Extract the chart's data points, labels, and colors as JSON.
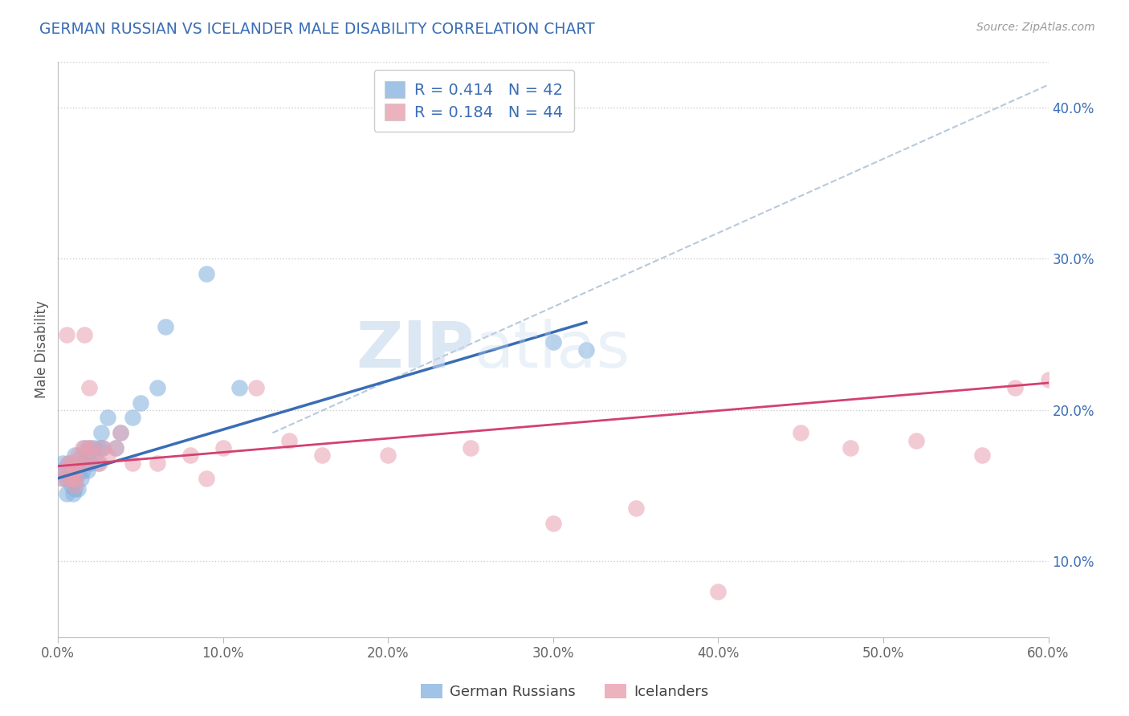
{
  "title": "GERMAN RUSSIAN VS ICELANDER MALE DISABILITY CORRELATION CHART",
  "source": "Source: ZipAtlas.com",
  "ylabel": "Male Disability",
  "xlim": [
    0.0,
    0.6
  ],
  "ylim": [
    0.05,
    0.43
  ],
  "xticks": [
    0.0,
    0.1,
    0.2,
    0.3,
    0.4,
    0.5,
    0.6
  ],
  "xticklabels": [
    "0.0%",
    "10.0%",
    "20.0%",
    "30.0%",
    "40.0%",
    "50.0%",
    "60.0%"
  ],
  "yticks": [
    0.1,
    0.2,
    0.3,
    0.4
  ],
  "yticklabels": [
    "10.0%",
    "20.0%",
    "30.0%",
    "40.0%"
  ],
  "blue_color": "#8ab4e0",
  "pink_color": "#e8a0b0",
  "blue_line_color": "#3a6db5",
  "pink_line_color": "#d44070",
  "trend_line_color": "#b0c4d8",
  "legend_R_blue": "R = 0.414",
  "legend_N_blue": "N = 42",
  "legend_R_pink": "R = 0.184",
  "legend_N_pink": "N = 44",
  "legend_label_blue": "German Russians",
  "legend_label_pink": "Icelanders",
  "watermark_zip": "ZIP",
  "watermark_atlas": "atlas",
  "background_color": "#ffffff",
  "grid_color": "#cccccc",
  "title_color": "#3a6db5",
  "axis_color": "#666666",
  "blue_x": [
    0.003,
    0.003,
    0.003,
    0.005,
    0.005,
    0.006,
    0.007,
    0.008,
    0.008,
    0.009,
    0.009,
    0.01,
    0.01,
    0.01,
    0.01,
    0.012,
    0.012,
    0.013,
    0.014,
    0.015,
    0.016,
    0.016,
    0.018,
    0.018,
    0.019,
    0.02,
    0.022,
    0.024,
    0.025,
    0.026,
    0.027,
    0.03,
    0.035,
    0.038,
    0.045,
    0.05,
    0.06,
    0.065,
    0.09,
    0.11,
    0.3,
    0.32
  ],
  "blue_y": [
    0.155,
    0.16,
    0.165,
    0.145,
    0.155,
    0.165,
    0.155,
    0.15,
    0.16,
    0.145,
    0.155,
    0.148,
    0.155,
    0.162,
    0.17,
    0.148,
    0.158,
    0.168,
    0.155,
    0.16,
    0.165,
    0.175,
    0.16,
    0.17,
    0.175,
    0.165,
    0.175,
    0.165,
    0.175,
    0.185,
    0.175,
    0.195,
    0.175,
    0.185,
    0.195,
    0.205,
    0.215,
    0.255,
    0.29,
    0.215,
    0.245,
    0.24
  ],
  "pink_x": [
    0.003,
    0.004,
    0.005,
    0.006,
    0.007,
    0.008,
    0.008,
    0.009,
    0.01,
    0.01,
    0.011,
    0.012,
    0.013,
    0.015,
    0.016,
    0.017,
    0.018,
    0.019,
    0.02,
    0.022,
    0.025,
    0.027,
    0.03,
    0.035,
    0.038,
    0.045,
    0.06,
    0.08,
    0.09,
    0.1,
    0.12,
    0.14,
    0.16,
    0.2,
    0.25,
    0.3,
    0.35,
    0.4,
    0.45,
    0.48,
    0.52,
    0.56,
    0.58,
    0.6
  ],
  "pink_y": [
    0.155,
    0.16,
    0.25,
    0.165,
    0.155,
    0.155,
    0.165,
    0.16,
    0.15,
    0.16,
    0.155,
    0.17,
    0.165,
    0.175,
    0.25,
    0.165,
    0.175,
    0.215,
    0.175,
    0.17,
    0.165,
    0.175,
    0.17,
    0.175,
    0.185,
    0.165,
    0.165,
    0.17,
    0.155,
    0.175,
    0.215,
    0.18,
    0.17,
    0.17,
    0.175,
    0.125,
    0.135,
    0.08,
    0.185,
    0.175,
    0.18,
    0.17,
    0.215,
    0.22
  ]
}
